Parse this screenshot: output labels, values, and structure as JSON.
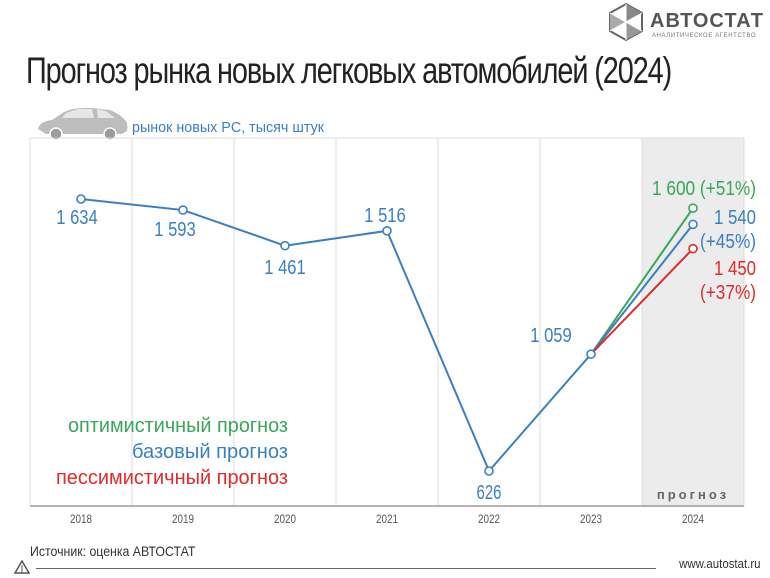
{
  "header": {
    "title": "Прогноз рынка новых легковых автомобилей (2024)",
    "brand_name": "АВТОСТАТ",
    "brand_tagline": "АНАЛИТИЧЕСКОЕ АГЕНТСТВО",
    "logo_icon": "hexagon-logo-icon"
  },
  "footer": {
    "source": "Источник: оценка АВТОСТАТ",
    "site": "www.autostat.ru"
  },
  "colors": {
    "base": "#3a7fc1",
    "optimistic": "#3aa65a",
    "pessimistic": "#e02b2b",
    "forecast_band": "#ececec",
    "grid": "#dddddd"
  },
  "chart_data": {
    "type": "line",
    "subtitle": "рынок новых PC, тысяч штук",
    "subtitle_icon": "car-icon",
    "categories": [
      "2018",
      "2019",
      "2020",
      "2021",
      "2022",
      "2023",
      "2024"
    ],
    "ylim": [
      400,
      1800
    ],
    "forecast_band_label": "прогноз",
    "series": [
      {
        "key": "historical",
        "values": [
          1634,
          1593,
          1461,
          1516,
          626,
          1059,
          null
        ],
        "labels": [
          "1 634",
          "1 593",
          "1 461",
          "1 516",
          "626",
          "1 059",
          ""
        ]
      },
      {
        "key": "optimistic",
        "name": "оптимистичный прогноз",
        "values": [
          null,
          null,
          null,
          null,
          null,
          1059,
          1600
        ],
        "label": "1 600 (+51%)"
      },
      {
        "key": "base",
        "name": "базовый прогноз",
        "values": [
          null,
          null,
          null,
          null,
          null,
          1059,
          1540
        ],
        "label_value": "1 540",
        "label_pct": "(+45%)"
      },
      {
        "key": "pessimistic",
        "name": "пессимистичный прогноз",
        "values": [
          null,
          null,
          null,
          null,
          null,
          1059,
          1450
        ],
        "label_value": "1 450",
        "label_pct": "(+37%)"
      }
    ],
    "legend": [
      "оптимистичный прогноз",
      "базовый прогноз",
      "пессимистичный прогноз"
    ],
    "legend_position": "bottom-left",
    "grid": true
  }
}
